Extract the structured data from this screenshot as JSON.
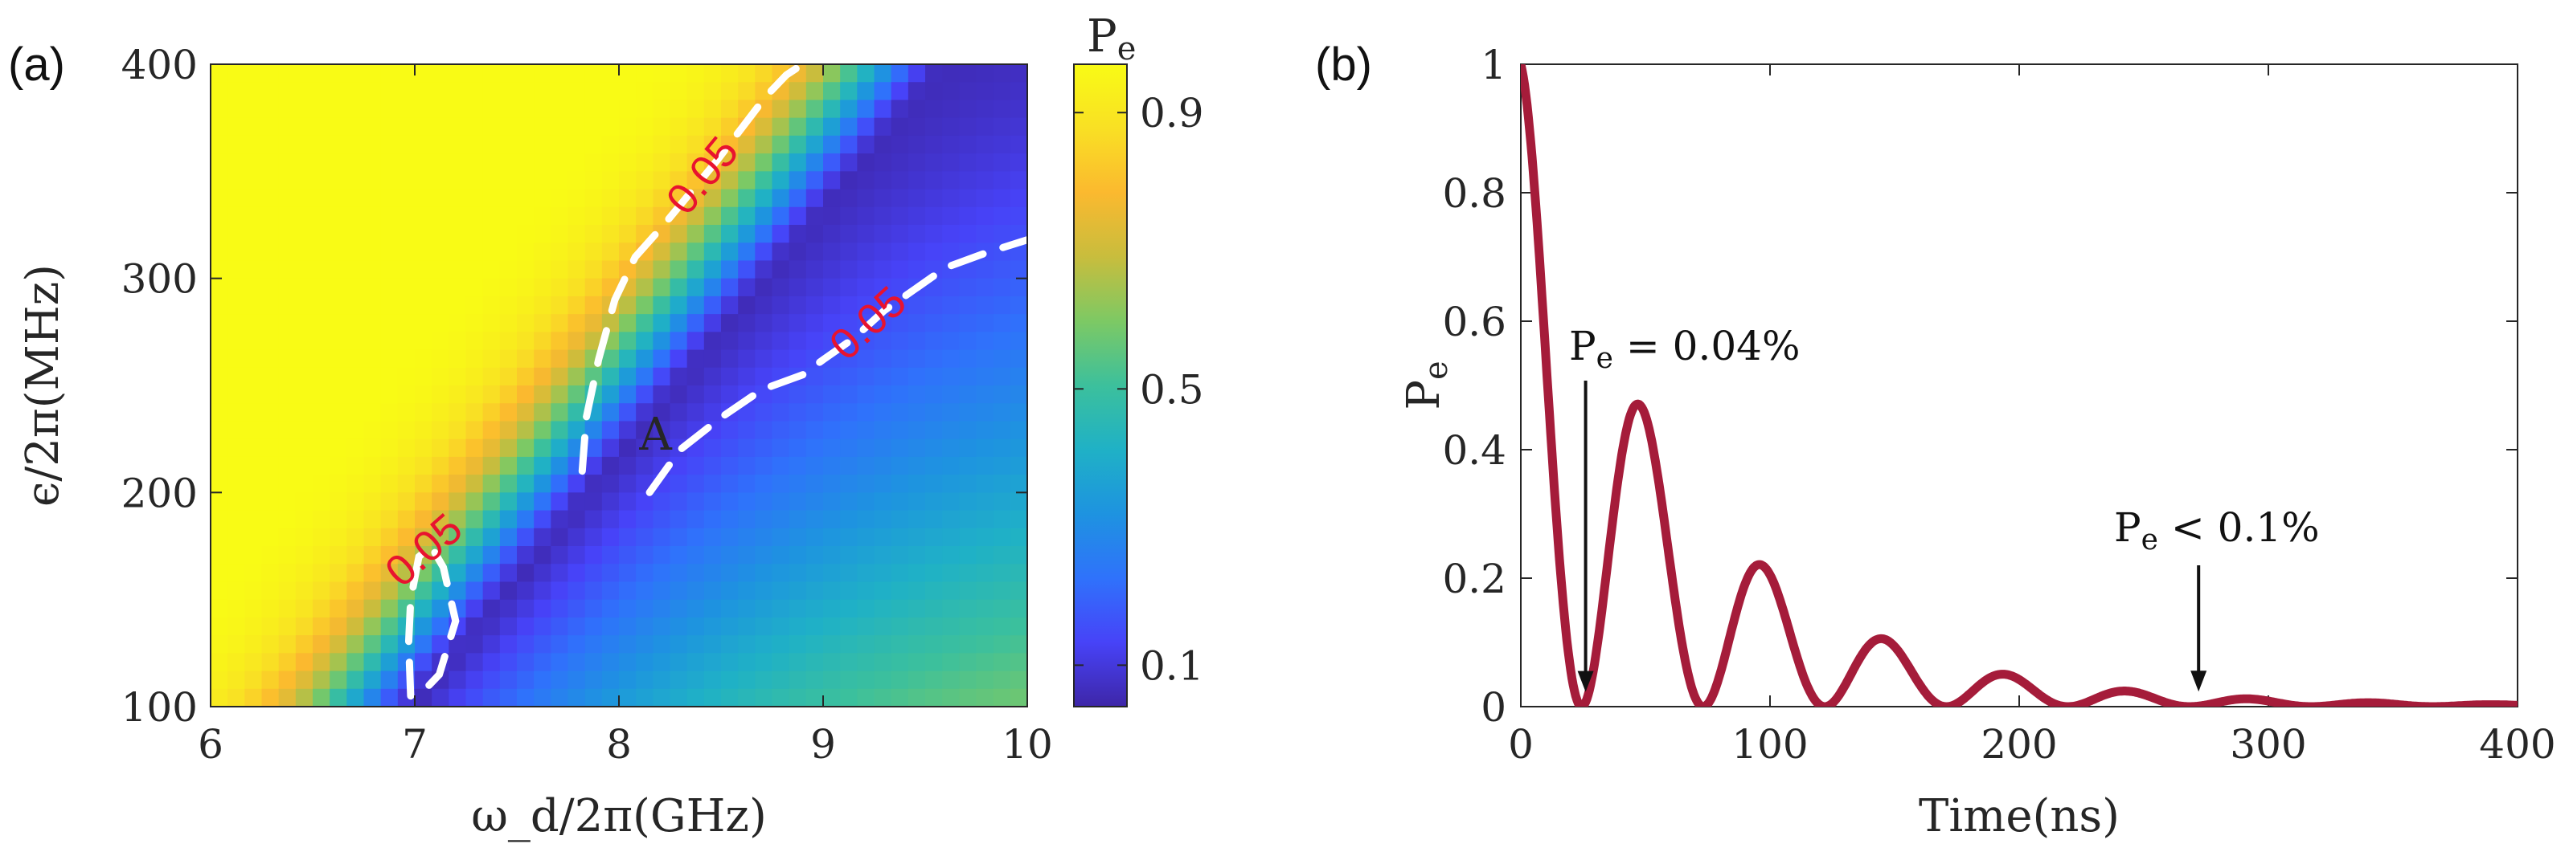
{
  "colors": {
    "curve": "#a51c3a",
    "contour_line": "#ffffff",
    "contour_label": "#e8132f",
    "axis": "#262626",
    "colormap": [
      "#3e26a8",
      "#4743f8",
      "#2f72fb",
      "#1e93e0",
      "#1fb1c6",
      "#3cc09c",
      "#7dc964",
      "#c8bd3d",
      "#fbb92f",
      "#f9e024",
      "#f9fb15"
    ]
  },
  "chart_data": [
    {
      "panel": "(a)",
      "type": "heatmap",
      "xlabel": "ω_d/2π(GHz)",
      "ylabel": "ϵ/2π(MHz)",
      "xlim": [
        6,
        10
      ],
      "ylim": [
        100,
        400
      ],
      "xticks": [
        "6",
        "7",
        "8",
        "9",
        "10"
      ],
      "yticks": [
        "100",
        "200",
        "300",
        "400"
      ],
      "colorbar": {
        "title": "P",
        "title_sub": "e",
        "range": [
          0.04,
          0.97
        ],
        "ticks": [
          "0.1",
          "0.5",
          "0.9"
        ],
        "tick_values": [
          0.1,
          0.5,
          0.9
        ]
      },
      "contours": [
        {
          "level": 0.05,
          "label": "0.05",
          "points": [
            [
              6.98,
              105
            ],
            [
              6.97,
              130
            ],
            [
              6.98,
              150
            ],
            [
              7.02,
              170
            ],
            [
              7.08,
              175
            ],
            [
              7.14,
              165
            ],
            [
              7.2,
              140
            ],
            [
              7.12,
              115
            ],
            [
              7.05,
              108
            ]
          ]
        },
        {
          "level": 0.05,
          "label": "0.05",
          "points": [
            [
              7.82,
              210
            ],
            [
              7.84,
              235
            ],
            [
              7.9,
              262
            ],
            [
              7.98,
              290
            ],
            [
              8.08,
              310
            ],
            [
              8.22,
              325
            ],
            [
              8.35,
              340
            ],
            [
              8.48,
              355
            ],
            [
              8.6,
              370
            ],
            [
              8.72,
              385
            ],
            [
              8.82,
              395
            ],
            [
              8.9,
              400
            ]
          ]
        },
        {
          "level": 0.05,
          "label": "0.05",
          "points": [
            [
              8.15,
              200
            ],
            [
              8.3,
              220
            ],
            [
              8.5,
              235
            ],
            [
              8.7,
              248
            ],
            [
              8.9,
              255
            ],
            [
              9.0,
              262
            ],
            [
              9.15,
              272
            ],
            [
              9.3,
              285
            ],
            [
              9.45,
              295
            ],
            [
              9.6,
              305
            ],
            [
              9.8,
              312
            ],
            [
              10.0,
              318
            ]
          ]
        }
      ],
      "annotation": {
        "text": "A",
        "x": 8.1,
        "y": 220
      }
    },
    {
      "panel": "(b)",
      "type": "line",
      "xlabel": "Time(ns)",
      "ylabel": "P",
      "ylabel_sub": "e",
      "xlim": [
        0,
        400
      ],
      "ylim": [
        0,
        1
      ],
      "xticks": [
        "0",
        "100",
        "200",
        "300",
        "400"
      ],
      "yticks": [
        "0",
        "0.2",
        "0.4",
        "0.6",
        "0.8",
        "1"
      ],
      "series": [
        {
          "name": "P_e(t)",
          "peaks": [
            [
              0,
              1.0
            ],
            [
              48,
              0.47
            ],
            [
              97,
              0.22
            ],
            [
              146,
              0.105
            ],
            [
              195,
              0.05
            ],
            [
              244,
              0.024
            ],
            [
              293,
              0.012
            ],
            [
              342,
              0.006
            ],
            [
              391,
              0.003
            ]
          ],
          "period_ns": 48.8,
          "first_min_ns": 26
        }
      ],
      "annotations": [
        {
          "text_main": "P",
          "text_sub": "e",
          "text_rest": " = 0.04%",
          "arrow_to": [
            26,
            0.0004
          ]
        },
        {
          "text_main": "P",
          "text_sub": "e",
          "text_rest": " < 0.1%",
          "arrow_to": [
            272,
            0.001
          ]
        }
      ]
    }
  ]
}
